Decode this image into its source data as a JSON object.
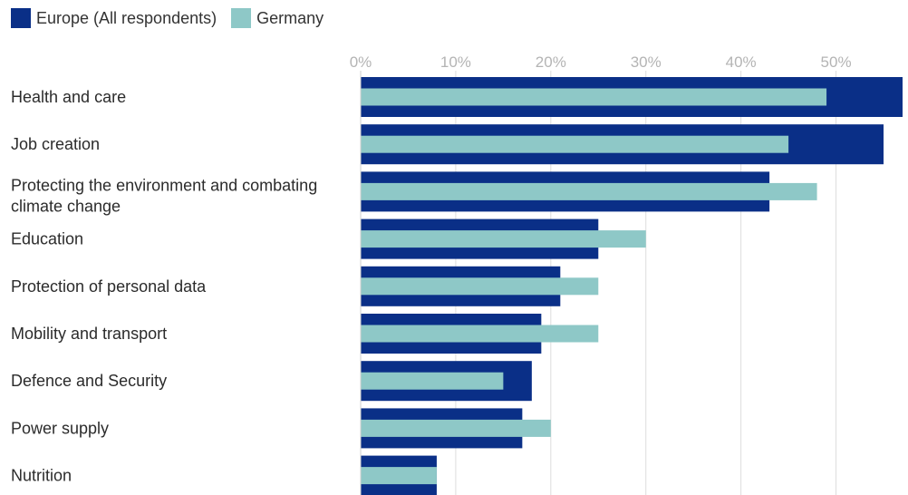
{
  "chart_data": {
    "type": "bar",
    "orientation": "horizontal",
    "title": "",
    "xlabel": "",
    "ylabel": "",
    "categories": [
      "Health and care",
      "Job creation",
      "Protecting the environment and combating climate change",
      "Education",
      "Protection of personal data",
      "Mobility and transport",
      "Defence and Security",
      "Power supply",
      "Nutrition"
    ],
    "series": [
      {
        "name": "Europe (All respondents)",
        "color": "#0a2f87",
        "values": [
          57,
          55,
          43,
          25,
          21,
          19,
          18,
          17,
          8
        ]
      },
      {
        "name": "Germany",
        "color": "#8ec8c7",
        "values": [
          49,
          45,
          48,
          30,
          25,
          25,
          15,
          20,
          8
        ]
      }
    ],
    "xlim": [
      0,
      57
    ],
    "ticks": [
      0,
      10,
      20,
      30,
      40,
      50
    ],
    "tick_labels": [
      "0%",
      "10%",
      "20%",
      "30%",
      "40%",
      "50%"
    ],
    "grid": true,
    "legend_position": "top-left"
  }
}
